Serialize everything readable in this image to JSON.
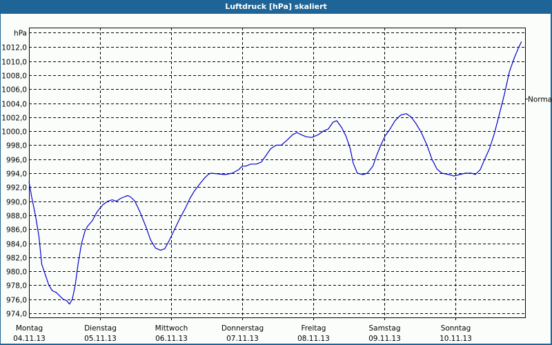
{
  "window": {
    "title": "Luftdruck [hPa] skaliert"
  },
  "colors": {
    "titlebar": "#1e6496",
    "background": "#fbfdfb",
    "line": "#0000c8",
    "grid": "#000000"
  },
  "chart_data": {
    "type": "line",
    "title": "Luftdruck [hPa] skaliert",
    "xlabel": "",
    "ylabel": "hPa",
    "ylim": [
      974,
      1012
    ],
    "yticks": [
      "1012,0",
      "1010,0",
      "1008,0",
      "1006,0",
      "1004,0",
      "1002,0",
      "1000,0",
      "998,0",
      "996,0",
      "994,0",
      "992,0",
      "990,0",
      "988,0",
      "986,0",
      "984,0",
      "982,0",
      "980,0",
      "978,0",
      "976,0",
      "974,0"
    ],
    "ytick_values": [
      1012,
      1010,
      1008,
      1006,
      1004,
      1002,
      1000,
      998,
      996,
      994,
      992,
      990,
      988,
      986,
      984,
      982,
      980,
      978,
      976,
      974
    ],
    "y_unit_label": "hPa",
    "reference_line": {
      "label": "Normal",
      "value": 1004.6
    },
    "grid": true,
    "legend": null,
    "categories": [
      {
        "day": "Montag",
        "date": "04.11.13"
      },
      {
        "day": "Dienstag",
        "date": "05.11.13"
      },
      {
        "day": "Mittwoch",
        "date": "06.11.13"
      },
      {
        "day": "Donnerstag",
        "date": "07.11.13"
      },
      {
        "day": "Freitag",
        "date": "08.11.13"
      },
      {
        "day": "Samstag",
        "date": "09.11.13"
      },
      {
        "day": "Sonntag",
        "date": "10.11.13"
      }
    ],
    "x_unit": "days since 04.11.13 00:00",
    "series": [
      {
        "name": "Luftdruck",
        "x": [
          0.0,
          0.04,
          0.09,
          0.14,
          0.18,
          0.23,
          0.28,
          0.33,
          0.38,
          0.43,
          0.48,
          0.53,
          0.57,
          0.61,
          0.65,
          0.69,
          0.74,
          0.79,
          0.83,
          0.89,
          0.96,
          1.04,
          1.11,
          1.17,
          1.23,
          1.29,
          1.36,
          1.39,
          1.43,
          1.49,
          1.56,
          1.64,
          1.71,
          1.78,
          1.85,
          1.91,
          1.98,
          2.05,
          2.12,
          2.2,
          2.27,
          2.33,
          2.39,
          2.47,
          2.52,
          2.56,
          2.66,
          2.76,
          2.86,
          2.95,
          3.0,
          3.05,
          3.12,
          3.2,
          3.27,
          3.34,
          3.4,
          3.48,
          3.55,
          3.64,
          3.71,
          3.77,
          3.83,
          3.9,
          3.98,
          4.07,
          4.14,
          4.21,
          4.28,
          4.33,
          4.4,
          4.46,
          4.52,
          4.56,
          4.62,
          4.7,
          4.76,
          4.84,
          4.89,
          4.95,
          5.01,
          5.08,
          5.15,
          5.23,
          5.31,
          5.38,
          5.45,
          5.52,
          5.6,
          5.67,
          5.74,
          5.81,
          5.91,
          5.98,
          6.06,
          6.14,
          6.23,
          6.28,
          6.35,
          6.4,
          6.48,
          6.55,
          6.62,
          6.69,
          6.76,
          6.83,
          6.88,
          6.93
        ],
        "values": [
          992.8,
          990.5,
          988.0,
          985.0,
          981.0,
          979.5,
          978.0,
          977.2,
          977.0,
          976.5,
          976.0,
          975.8,
          975.3,
          976.0,
          978.0,
          981.0,
          984.0,
          985.8,
          986.5,
          987.2,
          988.5,
          989.5,
          990.0,
          990.2,
          990.0,
          990.4,
          990.7,
          990.8,
          990.6,
          990.0,
          988.5,
          986.5,
          984.5,
          983.3,
          983.0,
          983.2,
          984.5,
          986.0,
          987.5,
          989.0,
          990.5,
          991.5,
          992.3,
          993.3,
          993.8,
          994.0,
          993.9,
          993.8,
          994.0,
          994.5,
          995.0,
          995.0,
          995.3,
          995.3,
          995.6,
          996.6,
          997.5,
          998.0,
          998.0,
          998.8,
          999.5,
          999.8,
          999.5,
          999.2,
          999.1,
          999.5,
          1000.0,
          1000.3,
          1001.3,
          1001.5,
          1000.5,
          999.3,
          997.5,
          995.5,
          994.0,
          993.8,
          994.0,
          995.0,
          996.5,
          998.0,
          999.3,
          1000.3,
          1001.5,
          1002.3,
          1002.5,
          1002.0,
          1001.0,
          999.8,
          998.0,
          996.0,
          994.6,
          994.0,
          993.8,
          993.6,
          993.8,
          994.0,
          994.0,
          993.8,
          994.5,
          995.7,
          997.5,
          999.7,
          1002.5,
          1005.3,
          1008.5,
          1010.5,
          1011.7,
          1012.8
        ]
      }
    ]
  }
}
